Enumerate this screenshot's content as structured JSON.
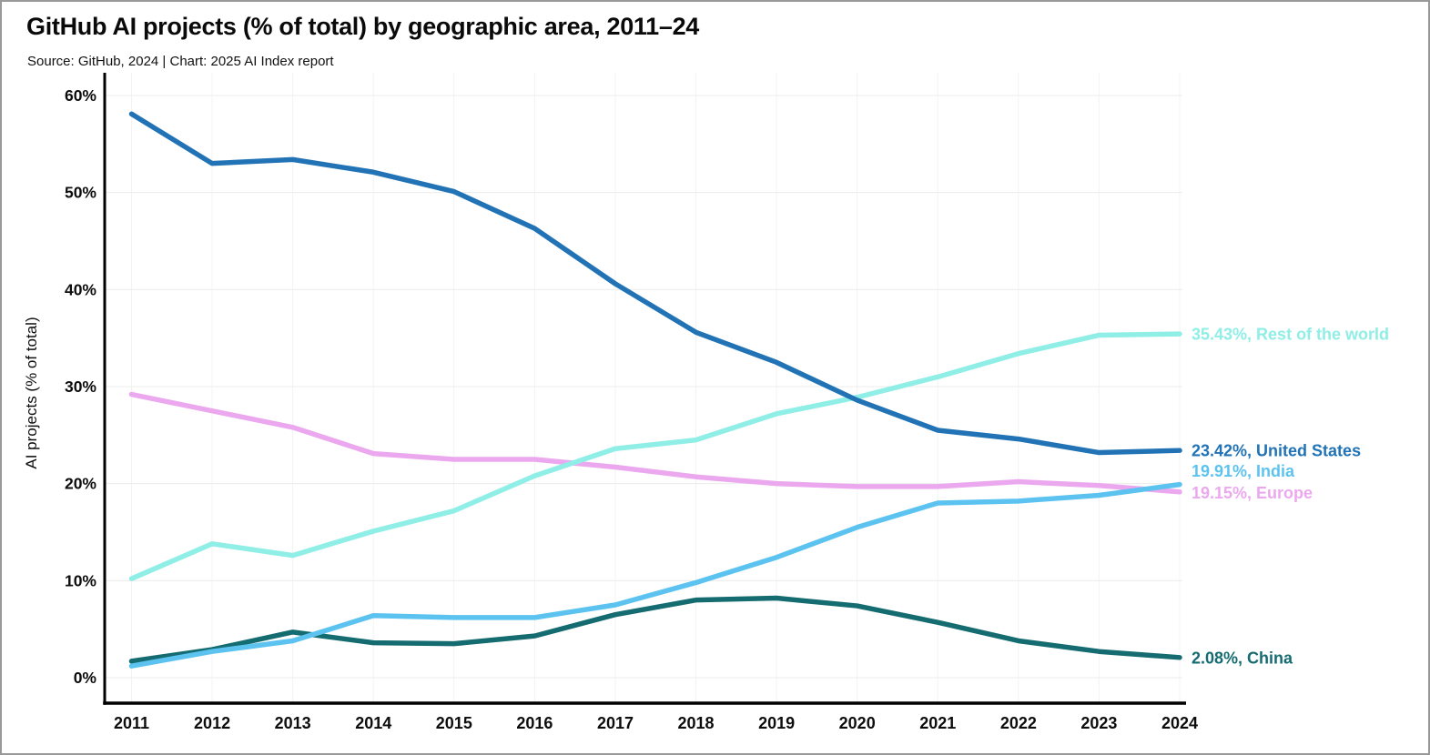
{
  "header": {
    "title": "GitHub AI projects (% of total) by geographic area, 2011–24",
    "source": "Source: GitHub, 2024 | Chart: 2025 AI Index report"
  },
  "chart_data": {
    "type": "line",
    "title": "GitHub AI projects (% of total) by geographic area, 2011–24",
    "x": [
      2011,
      2012,
      2013,
      2014,
      2015,
      2016,
      2017,
      2018,
      2019,
      2020,
      2021,
      2022,
      2023,
      2024
    ],
    "xlabel": "",
    "ylabel": "AI projects (% of total)",
    "ylim": [
      0,
      60
    ],
    "yticks": [
      0,
      10,
      20,
      30,
      40,
      50,
      60
    ],
    "ytick_labels": [
      "0%",
      "10%",
      "20%",
      "30%",
      "40%",
      "50%",
      "60%"
    ],
    "grid": true,
    "legend_position": "right-end-labels",
    "series": [
      {
        "name": "United States",
        "color": "#2173b5",
        "end_label": "23.42%, United States",
        "values": [
          58.1,
          53.0,
          53.4,
          52.1,
          50.1,
          46.3,
          40.6,
          35.6,
          32.5,
          28.6,
          25.5,
          24.6,
          23.2,
          23.42
        ]
      },
      {
        "name": "Rest of the world",
        "color": "#8feee6",
        "end_label": "35.43%, Rest of the world",
        "values": [
          10.2,
          13.8,
          12.6,
          15.1,
          17.2,
          20.8,
          23.6,
          24.5,
          27.2,
          28.9,
          31.0,
          33.4,
          35.3,
          35.43
        ]
      },
      {
        "name": "India",
        "color": "#5cc3f0",
        "end_label": "19.91%, India",
        "values": [
          1.2,
          2.7,
          3.8,
          6.4,
          6.2,
          6.2,
          7.5,
          9.8,
          12.4,
          15.5,
          18.0,
          18.2,
          18.8,
          19.91
        ]
      },
      {
        "name": "Europe",
        "color": "#eba8ef",
        "end_label": "19.15%, Europe",
        "values": [
          29.2,
          27.5,
          25.8,
          23.1,
          22.5,
          22.5,
          21.7,
          20.7,
          20.0,
          19.7,
          19.7,
          20.2,
          19.8,
          19.15
        ]
      },
      {
        "name": "China",
        "color": "#146b70",
        "end_label": "2.08%, China",
        "values": [
          1.7,
          2.9,
          4.7,
          3.6,
          3.5,
          4.3,
          6.5,
          8.0,
          8.2,
          7.4,
          5.7,
          3.8,
          2.7,
          2.08
        ]
      }
    ]
  }
}
